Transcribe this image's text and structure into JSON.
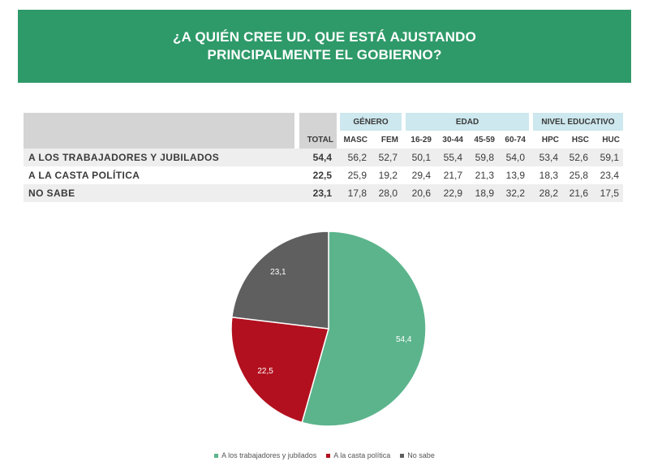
{
  "title_line1": "¿A QUIÉN CREE UD. QUE ESTÁ AJUSTANDO",
  "title_line2": "PRINCIPALMENTE EL GOBIERNO?",
  "table": {
    "groups": [
      "GÉNERO",
      "EDAD",
      "NIVEL EDUCATIVO"
    ],
    "total_label": "TOTAL",
    "columns": [
      "MASC",
      "FEM",
      "16-29",
      "30-44",
      "45-59",
      "60-74",
      "HPC",
      "HSC",
      "HUC"
    ],
    "rows": [
      {
        "label": "A LOS TRABAJADORES Y JUBILADOS",
        "total": "54,4",
        "values": [
          "56,2",
          "52,7",
          "50,1",
          "55,4",
          "59,8",
          "54,0",
          "53,4",
          "52,6",
          "59,1"
        ]
      },
      {
        "label": "A LA CASTA POLÍTICA",
        "total": "22,5",
        "values": [
          "25,9",
          "19,2",
          "29,4",
          "21,7",
          "21,3",
          "13,9",
          "18,3",
          "25,8",
          "23,4"
        ]
      },
      {
        "label": "NO SABE",
        "total": "23,1",
        "values": [
          "17,8",
          "28,0",
          "20,6",
          "22,9",
          "18,9",
          "32,2",
          "28,2",
          "21,6",
          "17,5"
        ]
      }
    ]
  },
  "chart_data": {
    "type": "pie",
    "title": "¿A QUIÉN CREE UD. QUE ESTÁ AJUSTANDO PRINCIPALMENTE EL GOBIERNO?",
    "slices": [
      {
        "label": "A los trabajadores y jubilados",
        "value": 54.4,
        "display": "54,4",
        "color": "#5cb48c"
      },
      {
        "label": "A la casta política",
        "value": 22.5,
        "display": "22,5",
        "color": "#b2101e"
      },
      {
        "label": "No sabe",
        "value": 23.1,
        "display": "23,1",
        "color": "#5f5f5f"
      }
    ],
    "legend_position": "bottom"
  }
}
